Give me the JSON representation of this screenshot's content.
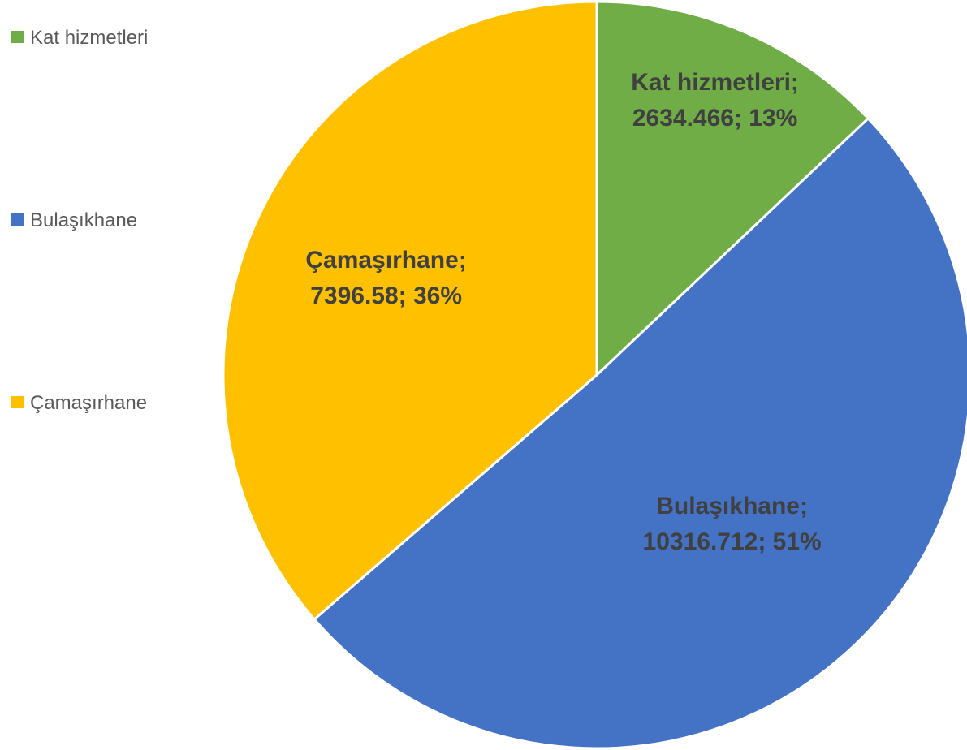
{
  "chart_data": {
    "type": "pie",
    "categories": [
      "Kat hizmetleri",
      "Bulaşıkhane",
      "Çamaşırhane"
    ],
    "values": [
      2634.466,
      10316.712,
      7396.58
    ],
    "value_labels": [
      "Kat hizmetleri; 2634.466; 13%",
      "Bulaşıkhane; 10316.712; 51%",
      "Çamaşırhane; 7396.58; 36%"
    ],
    "colors": [
      "#70ad47",
      "#4472c4",
      "#ffc000"
    ],
    "legend": "left"
  }
}
